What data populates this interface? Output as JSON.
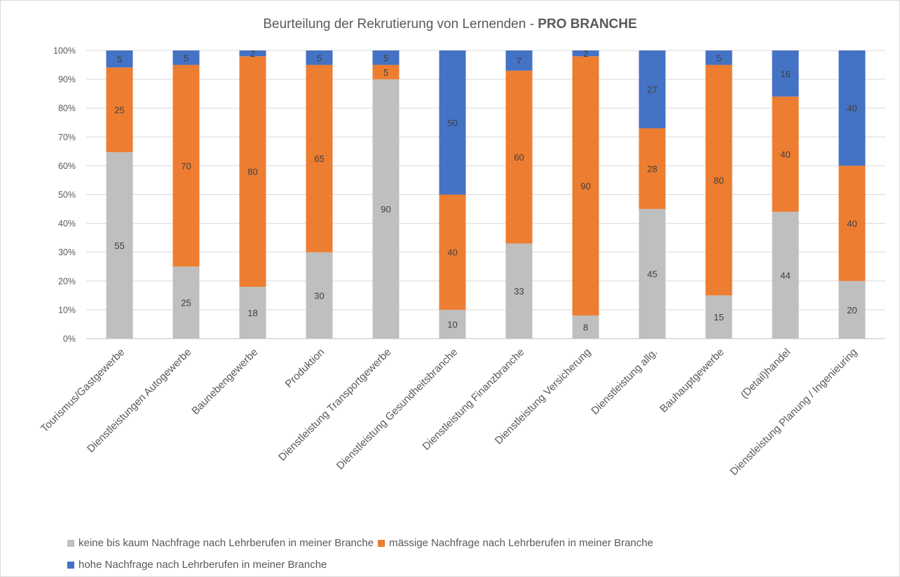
{
  "chart_data": {
    "type": "bar",
    "stacked": true,
    "percent_stacked": true,
    "title_main": "Beurteilung der Rekrutierung von Lernenden - ",
    "title_bold": "PRO BRANCHE",
    "categories": [
      "Tourismus/Gastgewerbe",
      "Dienstleistungen Autogewerbe",
      "Baunebengewerbe",
      "Produktion",
      "Dienstleistung Transportgewerbe",
      "Dienstleistung Gesundheitsbranche",
      "Dienstleistung Finanzbranche",
      "Dienstleistung Versicherung",
      "Dienstleistung allg.",
      "Bauhauptgewerbe",
      "(Detail)handel",
      "Dienstleistung Planung / Ingenieuring"
    ],
    "series": [
      {
        "name": "keine bis kaum Nachfrage nach Lehrberufen in meiner Branche",
        "color": "#bfbfbf",
        "values": [
          55,
          25,
          18,
          30,
          90,
          10,
          33,
          8,
          45,
          15,
          44,
          20
        ]
      },
      {
        "name": "mässige Nachfrage nach Lehrberufen in meiner Branche",
        "color": "#ed7d31",
        "values": [
          25,
          70,
          80,
          65,
          5,
          40,
          60,
          90,
          28,
          80,
          40,
          40
        ]
      },
      {
        "name": "hohe Nachfrage nach Lehrberufen in meiner Branche",
        "color": "#4472c4",
        "values": [
          5,
          5,
          2,
          5,
          5,
          50,
          7,
          2,
          27,
          5,
          16,
          40
        ]
      }
    ],
    "y_ticks": [
      "0%",
      "10%",
      "20%",
      "30%",
      "40%",
      "50%",
      "60%",
      "70%",
      "80%",
      "90%",
      "100%"
    ],
    "ylim": [
      0,
      100
    ],
    "grid": true,
    "legend_position": "bottom"
  }
}
